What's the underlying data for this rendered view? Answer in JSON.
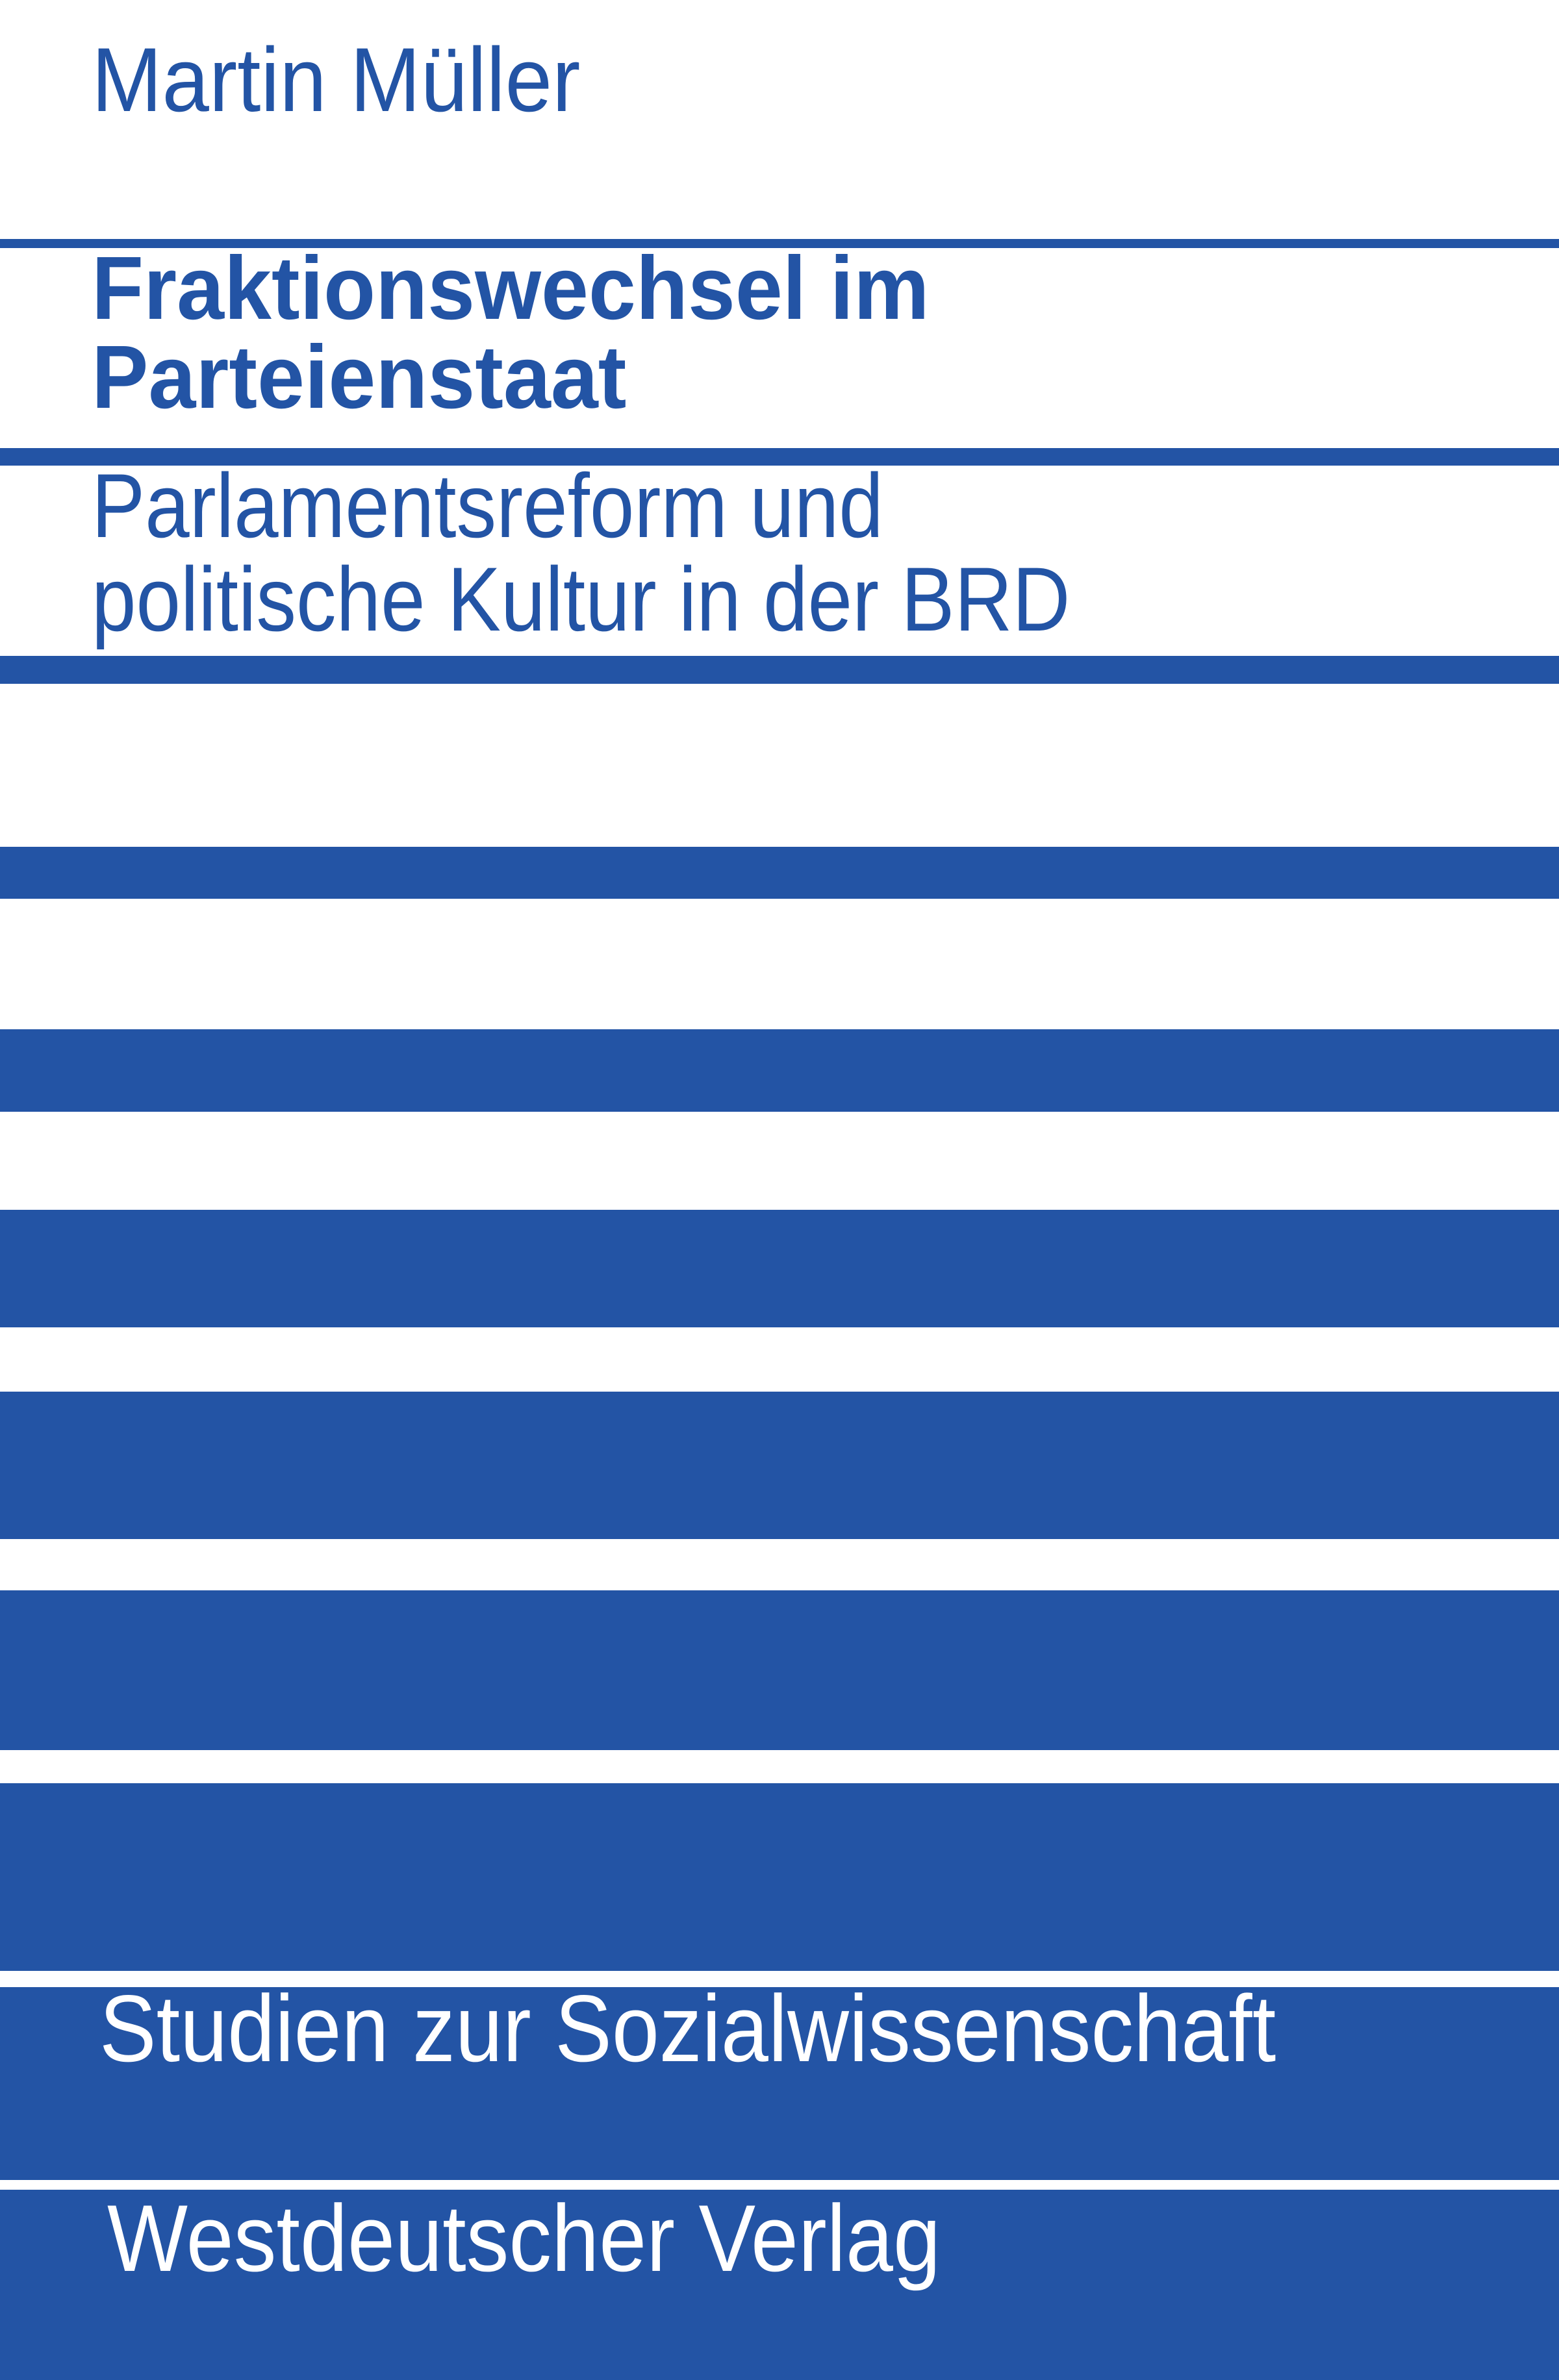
{
  "cover": {
    "author": "Martin Müller",
    "title_lines": [
      "Fraktionswechsel im",
      "Parteienstaat"
    ],
    "subtitle_lines": [
      "Parlamentsreform und",
      "politische Kultur in der BRD"
    ],
    "series": "Studien zur Sozialwissenschaft",
    "publisher": "Westdeutscher Verlag"
  },
  "colors": {
    "brand_blue": "#2354a5",
    "background": "#ffffff"
  }
}
